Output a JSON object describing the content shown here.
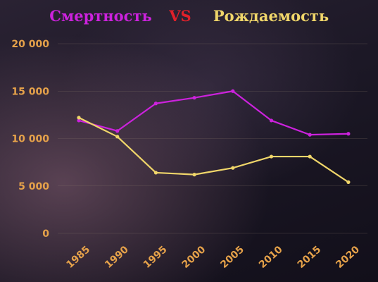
{
  "colors": {
    "death": "#cc22dd",
    "birth": "#f0d66a",
    "vs": "#e0202a",
    "axis_text": "#e6a24a",
    "grid": "#8a7a6a"
  },
  "chart_data": {
    "type": "line",
    "title": {
      "left": "Смертность",
      "middle": "VS",
      "right": "Рождаемость"
    },
    "xlabel": "",
    "ylabel": "",
    "categories": [
      "1985",
      "1990",
      "1995",
      "2000",
      "2005",
      "2010",
      "2015",
      "2020"
    ],
    "ylim": [
      0,
      20000
    ],
    "yticks": [
      0,
      5000,
      10000,
      15000,
      20000
    ],
    "ytick_labels": [
      "0",
      "5 000",
      "10 000",
      "15 000",
      "20 000"
    ],
    "grid": true,
    "legend": "none",
    "series": [
      {
        "key": "death",
        "values": [
          11900,
          10800,
          13700,
          14300,
          15000,
          11900,
          10400,
          10500
        ]
      },
      {
        "key": "birth",
        "values": [
          12200,
          10200,
          6400,
          6200,
          6900,
          8100,
          8100,
          5400
        ]
      }
    ]
  }
}
